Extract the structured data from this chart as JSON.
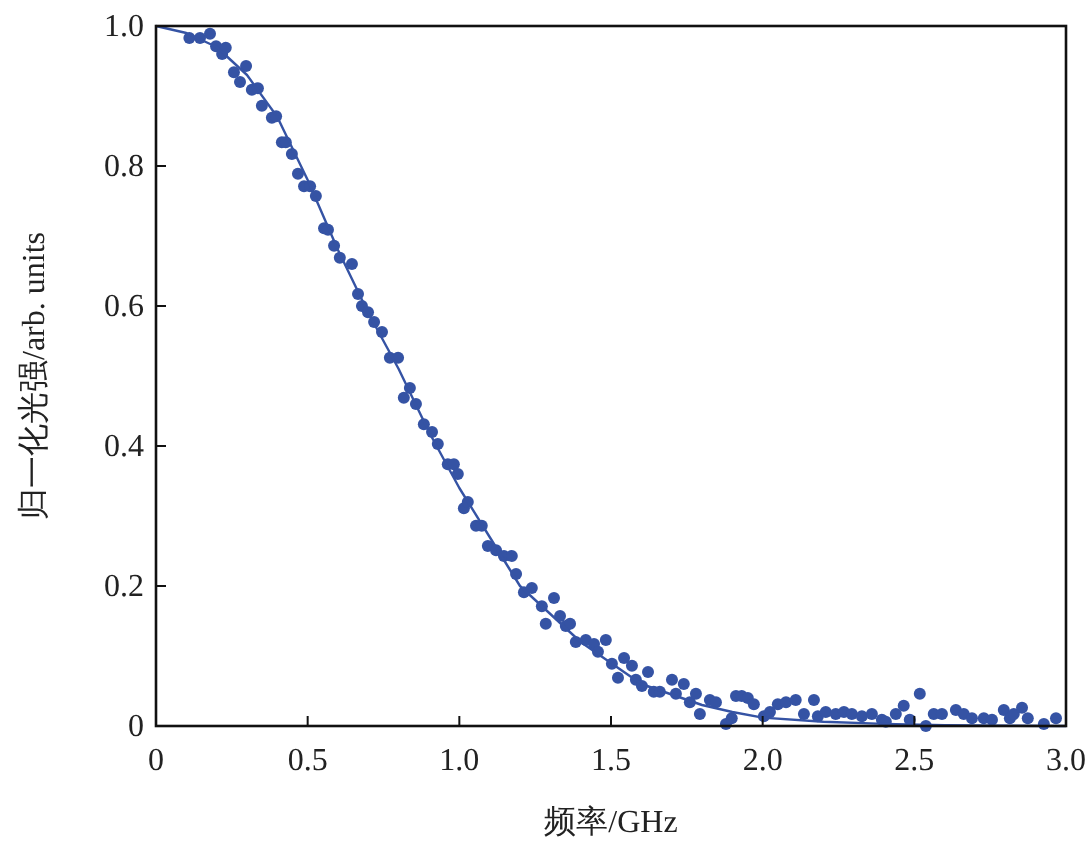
{
  "chart_data": {
    "type": "scatter",
    "xlabel": "频率/GHz",
    "ylabel": "归一化光强/arb. units",
    "xlim": [
      0,
      3
    ],
    "ylim": [
      0,
      1
    ],
    "xticks": [
      0,
      0.5,
      {
        "value": 1,
        "label": "1.0"
      },
      1.5,
      {
        "value": 2,
        "label": "2.0"
      },
      2.5,
      {
        "value": 3,
        "label": "3.0"
      }
    ],
    "yticks": [
      0,
      0.2,
      0.4,
      0.6,
      0.8,
      {
        "value": 1,
        "label": "1.0"
      }
    ],
    "grid": false,
    "series": [
      {
        "color": "#3553a4",
        "marker": "circle",
        "x": [
          0.11,
          0.145,
          0.178,
          0.198,
          0.218,
          0.23,
          0.257,
          0.277,
          0.297,
          0.316,
          0.336,
          0.349,
          0.382,
          0.396,
          0.415,
          0.428,
          0.448,
          0.468,
          0.488,
          0.508,
          0.527,
          0.554,
          0.567,
          0.587,
          0.606,
          0.646,
          0.666,
          0.679,
          0.699,
          0.719,
          0.745,
          0.771,
          0.798,
          0.817,
          0.837,
          0.857,
          0.883,
          0.91,
          0.929,
          0.962,
          0.982,
          0.995,
          1.015,
          1.028,
          1.055,
          1.074,
          1.094,
          1.121,
          1.147,
          1.173,
          1.187,
          1.213,
          1.239,
          1.272,
          1.285,
          1.312,
          1.332,
          1.351,
          1.365,
          1.384,
          1.417,
          1.444,
          1.457,
          1.483,
          1.503,
          1.523,
          1.543,
          1.569,
          1.582,
          1.602,
          1.622,
          1.641,
          1.661,
          1.701,
          1.714,
          1.74,
          1.76,
          1.78,
          1.793,
          1.826,
          1.846,
          1.879,
          1.898,
          1.912,
          1.931,
          1.951,
          1.971,
          2.004,
          2.024,
          2.05,
          2.077,
          2.109,
          2.136,
          2.169,
          2.182,
          2.208,
          2.241,
          2.268,
          2.294,
          2.327,
          2.36,
          2.393,
          2.406,
          2.439,
          2.465,
          2.485,
          2.518,
          2.538,
          2.564,
          2.591,
          2.637,
          2.663,
          2.69,
          2.729,
          2.756,
          2.795,
          2.815,
          2.828,
          2.855,
          2.874,
          2.927,
          2.967
        ],
        "values": [
          0.983,
          0.983,
          0.989,
          0.971,
          0.96,
          0.969,
          0.934,
          0.92,
          0.943,
          0.909,
          0.911,
          0.886,
          0.869,
          0.871,
          0.834,
          0.834,
          0.817,
          0.789,
          0.771,
          0.771,
          0.757,
          0.711,
          0.709,
          0.686,
          0.669,
          0.66,
          0.617,
          0.6,
          0.591,
          0.577,
          0.563,
          0.526,
          0.526,
          0.469,
          0.483,
          0.46,
          0.431,
          0.42,
          0.403,
          0.374,
          0.374,
          0.36,
          0.311,
          0.32,
          0.286,
          0.286,
          0.257,
          0.251,
          0.243,
          0.243,
          0.217,
          0.191,
          0.197,
          0.171,
          0.146,
          0.183,
          0.157,
          0.143,
          0.146,
          0.12,
          0.123,
          0.117,
          0.106,
          0.123,
          0.089,
          0.069,
          0.097,
          0.086,
          0.066,
          0.057,
          0.077,
          0.049,
          0.049,
          0.066,
          0.046,
          0.06,
          0.034,
          0.046,
          0.017,
          0.037,
          0.034,
          0.003,
          0.011,
          0.043,
          0.043,
          0.04,
          0.031,
          0.014,
          0.02,
          0.031,
          0.034,
          0.037,
          0.017,
          0.037,
          0.014,
          0.02,
          0.017,
          0.02,
          0.017,
          0.014,
          0.017,
          0.009,
          0.006,
          0.017,
          0.029,
          0.009,
          0.046,
          0.0,
          0.017,
          0.017,
          0.023,
          0.017,
          0.011,
          0.011,
          0.009,
          0.023,
          0.011,
          0.017,
          0.026,
          0.011,
          0.003,
          0.011
        ]
      },
      {
        "type": "line",
        "color": "#3553a4",
        "x": [
          0,
          0.1,
          0.2,
          0.3,
          0.4,
          0.5,
          0.6,
          0.7,
          0.8,
          0.9,
          1.0,
          1.1,
          1.2,
          1.3,
          1.4,
          1.5,
          1.6,
          1.7,
          1.8,
          1.9,
          2.0,
          2.2,
          2.4,
          2.6,
          3.0
        ],
        "values": [
          1.0,
          0.99,
          0.97,
          0.93,
          0.87,
          0.78,
          0.68,
          0.59,
          0.51,
          0.42,
          0.34,
          0.27,
          0.2,
          0.16,
          0.12,
          0.09,
          0.06,
          0.045,
          0.03,
          0.02,
          0.012,
          0.006,
          0.003,
          0.001,
          0.0
        ]
      }
    ]
  }
}
